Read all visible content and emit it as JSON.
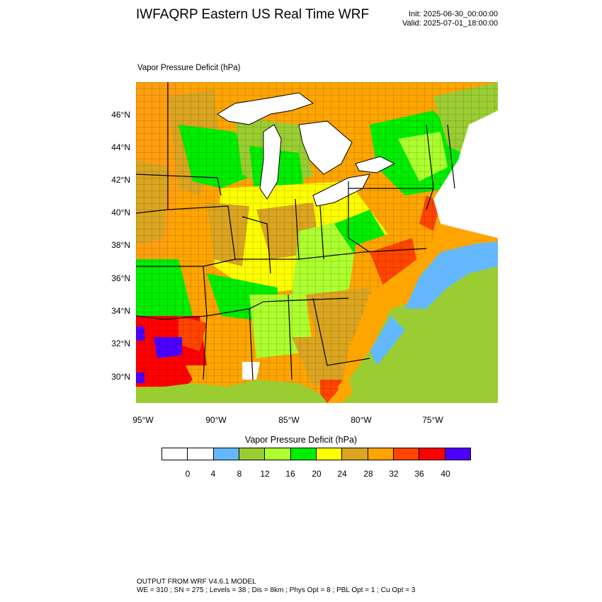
{
  "title": "IWFAQRP Eastern US Real Time WRF",
  "init_time": "Init: 2025-06-30_00:00:00",
  "valid_time": "Valid: 2025-07-01_18:00:00",
  "map_variable_label": "Vapor Pressure Deficit   (hPa)",
  "lat_labels": [
    "46°N",
    "44°N",
    "42°N",
    "40°N",
    "38°N",
    "36°N",
    "34°N",
    "32°N",
    "30°N"
  ],
  "lon_labels": [
    "95°W",
    "90°W",
    "85°W",
    "80°W",
    "75°W"
  ],
  "colorbar": {
    "title": "Vapor Pressure Deficit  (hPa)",
    "colors": [
      "#ffffff",
      "#ffffff",
      "#63b8ff",
      "#9acd32",
      "#adff2f",
      "#00ee00",
      "#ffff00",
      "#daa520",
      "#ffa500",
      "#ff4500",
      "#ff0000",
      "#4b00ff"
    ],
    "tick_labels": [
      "0",
      "4",
      "8",
      "12",
      "16",
      "20",
      "24",
      "28",
      "32",
      "36",
      "40"
    ]
  },
  "colors": {
    "lake": "#ffffff",
    "ocean_low": "#63b8ff",
    "ocean_mid": "#9acd32",
    "boundary": "#000000"
  },
  "footer": {
    "line1": "OUTPUT FROM WRF V4.6.1 MODEL",
    "line2": "WE = 310 ; SN = 275 ; Levels = 38 ; Dis = 8km ; Phys Opt = 8 ; PBL Opt = 1 ; Cu Opt = 3"
  }
}
